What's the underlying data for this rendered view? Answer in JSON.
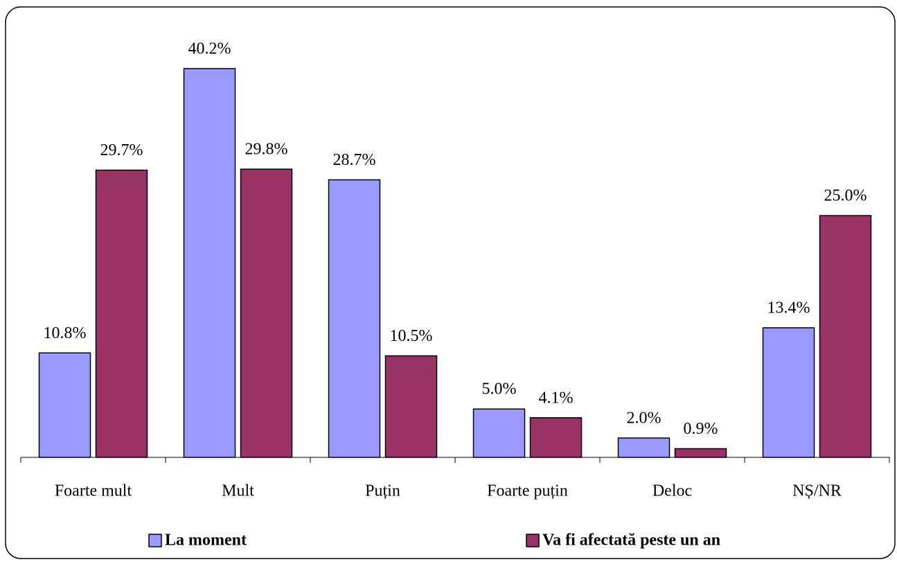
{
  "chart_data": {
    "type": "bar",
    "categories": [
      "Foarte mult",
      "Mult",
      "Puțin",
      "Foarte puțin",
      "Deloc",
      "NȘ/NR"
    ],
    "series": [
      {
        "name": "La moment",
        "color": "#9999ff",
        "values": [
          10.8,
          40.2,
          28.7,
          5.0,
          2.0,
          13.4
        ],
        "value_labels": [
          "10.8%",
          "40.2%",
          "28.7%",
          "5.0%",
          "2.0%",
          "13.4%"
        ]
      },
      {
        "name": "Va fi afectată peste un an",
        "color": "#993366",
        "values": [
          29.7,
          29.8,
          10.5,
          4.1,
          0.9,
          25.0
        ],
        "value_labels": [
          "29.7%",
          "29.8%",
          "10.5%",
          "4.1%",
          "0.9%",
          "25.0%"
        ]
      }
    ],
    "ylim": [
      0,
      45
    ],
    "legend": "bottom"
  }
}
